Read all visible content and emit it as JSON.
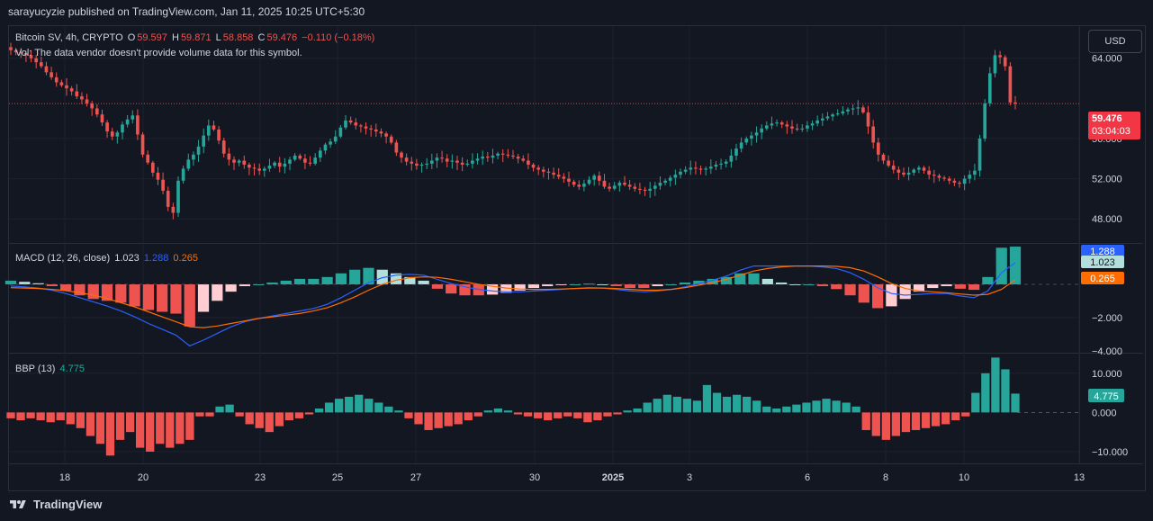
{
  "header": {
    "publisher": "sarayucyzie published on TradingView.com, Jan 11, 2025 10:25 UTC+5:30"
  },
  "legend": {
    "symbol": "Bitcoin SV, 4h, CRYPTO",
    "o_label": "O",
    "o": "59.597",
    "h_label": "H",
    "h": "59.871",
    "l_label": "L",
    "l": "58.858",
    "c_label": "C",
    "c": "59.476",
    "change": "−0.110 (−0.18%)",
    "vol_note": "Vol: The data vendor doesn't provide volume data for this symbol."
  },
  "currency_button": "USD",
  "price_tags": {
    "last": "59.476",
    "countdown": "03:04:03"
  },
  "macd_legend": {
    "name": "MACD (12, 26, close)",
    "hist": "1.023",
    "macd": "1.288",
    "signal": "0.265"
  },
  "bbp_legend": {
    "name": "BBP (13)",
    "value": "4.775"
  },
  "footer": {
    "brand": "TradingView"
  },
  "colors": {
    "up": "#26a69a",
    "down": "#ef5350",
    "macd": "#2962ff",
    "signal": "#ff6d00",
    "bg": "#131722"
  },
  "chart_data": [
    {
      "type": "candlestick",
      "title": "Bitcoin SV, 4h, CRYPTO",
      "price_axis": {
        "ticks": [
          48.0,
          52.0,
          56.0,
          64.0
        ],
        "tick_labels": [
          "48.000",
          "52.000",
          "56.000",
          "64.000"
        ],
        "ylim": [
          45.6,
          67.2
        ]
      },
      "x_axis": {
        "tick_labels": [
          "18",
          "20",
          "23",
          "25",
          "27",
          "30",
          "2025",
          "3",
          "6",
          "8",
          "10",
          "13"
        ]
      },
      "grid": true,
      "close": [
        64.8,
        64.6,
        64.5,
        64.3,
        64.0,
        63.6,
        63.2,
        62.6,
        62.1,
        61.6,
        61.3,
        61.0,
        60.7,
        60.2,
        59.9,
        59.5,
        59.0,
        58.4,
        57.6,
        56.7,
        56.2,
        56.6,
        57.4,
        57.9,
        58.3,
        56.4,
        54.4,
        53.6,
        52.6,
        51.9,
        50.8,
        49.2,
        48.6,
        51.8,
        53.0,
        53.9,
        54.4,
        55.2,
        56.3,
        57.3,
        56.9,
        55.8,
        54.5,
        53.9,
        53.6,
        53.8,
        53.4,
        53.1,
        53.0,
        52.8,
        53.0,
        53.3,
        53.6,
        53.2,
        53.5,
        53.9,
        54.3,
        54.0,
        53.6,
        53.5,
        54.1,
        54.8,
        55.4,
        55.7,
        56.2,
        57.1,
        57.8,
        57.6,
        57.3,
        57.2,
        57.0,
        56.9,
        56.7,
        56.5,
        56.2,
        55.6,
        54.6,
        54.1,
        53.7,
        53.5,
        53.3,
        53.4,
        53.5,
        53.8,
        54.1,
        54.0,
        53.7,
        53.8,
        53.6,
        53.4,
        53.5,
        53.8,
        54.0,
        54.2,
        54.1,
        54.3,
        54.5,
        54.4,
        54.3,
        54.2,
        54.0,
        53.8,
        53.4,
        53.1,
        52.9,
        52.7,
        52.6,
        52.4,
        52.2,
        52.0,
        51.7,
        51.4,
        51.2,
        51.5,
        51.9,
        52.3,
        51.8,
        51.2,
        51.0,
        51.3,
        51.6,
        51.4,
        51.2,
        51.0,
        50.9,
        50.8,
        51.0,
        51.3,
        51.6,
        51.8,
        52.1,
        52.4,
        52.7,
        52.9,
        53.1,
        53.0,
        52.9,
        53.0,
        53.2,
        53.4,
        53.5,
        53.7,
        54.3,
        55.0,
        55.6,
        56.0,
        56.3,
        56.6,
        57.0,
        57.3,
        57.5,
        57.6,
        57.4,
        57.2,
        57.0,
        56.9,
        57.0,
        57.3,
        57.5,
        57.8,
        58.0,
        58.2,
        58.4,
        58.5,
        58.7,
        58.9,
        59.0,
        59.1,
        58.6,
        57.2,
        55.6,
        54.4,
        53.8,
        53.3,
        52.9,
        52.6,
        52.4,
        52.6,
        52.9,
        53.1,
        52.8,
        52.4,
        52.3,
        52.1,
        52.0,
        51.8,
        51.6,
        51.5,
        52.0,
        52.4,
        52.8,
        56.0,
        59.5,
        62.5,
        64.3,
        64.1,
        63.2,
        59.6,
        59.48
      ]
    },
    {
      "type": "line",
      "title": "MACD (12, 26, close)",
      "y_ticks": [
        "1.288",
        "1.023",
        "−2.000",
        "−4.000"
      ],
      "ylim": [
        -4.0,
        2.0
      ],
      "series": [
        {
          "name": "MACD",
          "values": [
            -0.1,
            -0.15,
            -0.22,
            -0.35,
            -0.55,
            -0.8,
            -1.05,
            -1.3,
            -1.6,
            -1.95,
            -2.35,
            -2.7,
            -3.05,
            -3.7,
            -3.35,
            -2.95,
            -2.55,
            -2.25,
            -2.05,
            -1.9,
            -1.75,
            -1.6,
            -1.45,
            -1.2,
            -0.8,
            -0.35,
            0.1,
            0.4,
            0.55,
            0.6,
            0.55,
            0.3,
            0.05,
            -0.15,
            -0.3,
            -0.4,
            -0.45,
            -0.45,
            -0.4,
            -0.35,
            -0.3,
            -0.25,
            -0.2,
            -0.22,
            -0.3,
            -0.4,
            -0.45,
            -0.4,
            -0.3,
            -0.15,
            0.05,
            0.25,
            0.5,
            0.85,
            1.1,
            1.1,
            1.1,
            1.1,
            1.1,
            1.05,
            0.95,
            0.7,
            0.3,
            -0.2,
            -0.55,
            -0.65,
            -0.6,
            -0.55,
            -0.55,
            -0.7,
            -0.8,
            -0.4,
            0.7,
            1.3
          ]
        },
        {
          "name": "Signal",
          "values": [
            -0.2,
            -0.22,
            -0.25,
            -0.3,
            -0.38,
            -0.5,
            -0.65,
            -0.85,
            -1.1,
            -1.35,
            -1.65,
            -1.95,
            -2.25,
            -2.55,
            -2.6,
            -2.5,
            -2.35,
            -2.2,
            -2.05,
            -1.95,
            -1.85,
            -1.75,
            -1.6,
            -1.4,
            -1.1,
            -0.75,
            -0.35,
            0.0,
            0.25,
            0.4,
            0.45,
            0.42,
            0.3,
            0.15,
            0.0,
            -0.12,
            -0.22,
            -0.28,
            -0.3,
            -0.3,
            -0.28,
            -0.25,
            -0.22,
            -0.22,
            -0.25,
            -0.3,
            -0.35,
            -0.35,
            -0.3,
            -0.2,
            -0.05,
            0.1,
            0.3,
            0.55,
            0.8,
            0.95,
            1.05,
            1.1,
            1.1,
            1.1,
            1.08,
            1.0,
            0.8,
            0.45,
            0.05,
            -0.25,
            -0.4,
            -0.45,
            -0.5,
            -0.58,
            -0.65,
            -0.6,
            -0.3,
            0.27
          ]
        }
      ]
    },
    {
      "type": "bar",
      "title": "BBP (13)",
      "y_ticks": [
        "10.000",
        "0.000",
        "−10.000"
      ],
      "ylim": [
        -13,
        15
      ],
      "values": [
        -1.5,
        -2.0,
        -1.5,
        -2.0,
        -2.5,
        -2.0,
        -3.0,
        -4.0,
        -6.0,
        -8.0,
        -11.0,
        -7.0,
        -5.0,
        -9.0,
        -10.0,
        -8.0,
        -9.0,
        -8.0,
        -7.0,
        -1.0,
        -1.0,
        1.5,
        2.0,
        -1.0,
        -3.0,
        -4.0,
        -5.0,
        -3.5,
        -2.0,
        -1.5,
        -0.5,
        1.0,
        2.5,
        3.5,
        4.0,
        4.5,
        3.5,
        2.5,
        1.5,
        0.5,
        -1.5,
        -3.0,
        -4.5,
        -4.0,
        -3.5,
        -3.0,
        -2.0,
        -1.0,
        0.5,
        1.0,
        0.5,
        -0.5,
        -1.0,
        -1.5,
        -2.0,
        -1.5,
        -1.0,
        -1.5,
        -2.5,
        -2.0,
        -1.0,
        -0.5,
        0.5,
        1.0,
        2.5,
        3.5,
        4.5,
        4.0,
        3.5,
        3.0,
        7.0,
        5.0,
        4.0,
        4.5,
        4.0,
        3.0,
        1.5,
        1.0,
        1.5,
        2.0,
        2.5,
        3.0,
        3.5,
        3.0,
        2.5,
        1.5,
        -4.5,
        -6.0,
        -7.0,
        -6.0,
        -5.0,
        -4.5,
        -4.0,
        -3.5,
        -3.0,
        -2.0,
        -1.0,
        5.0,
        10.0,
        14.0,
        11.0,
        4.8
      ]
    }
  ]
}
